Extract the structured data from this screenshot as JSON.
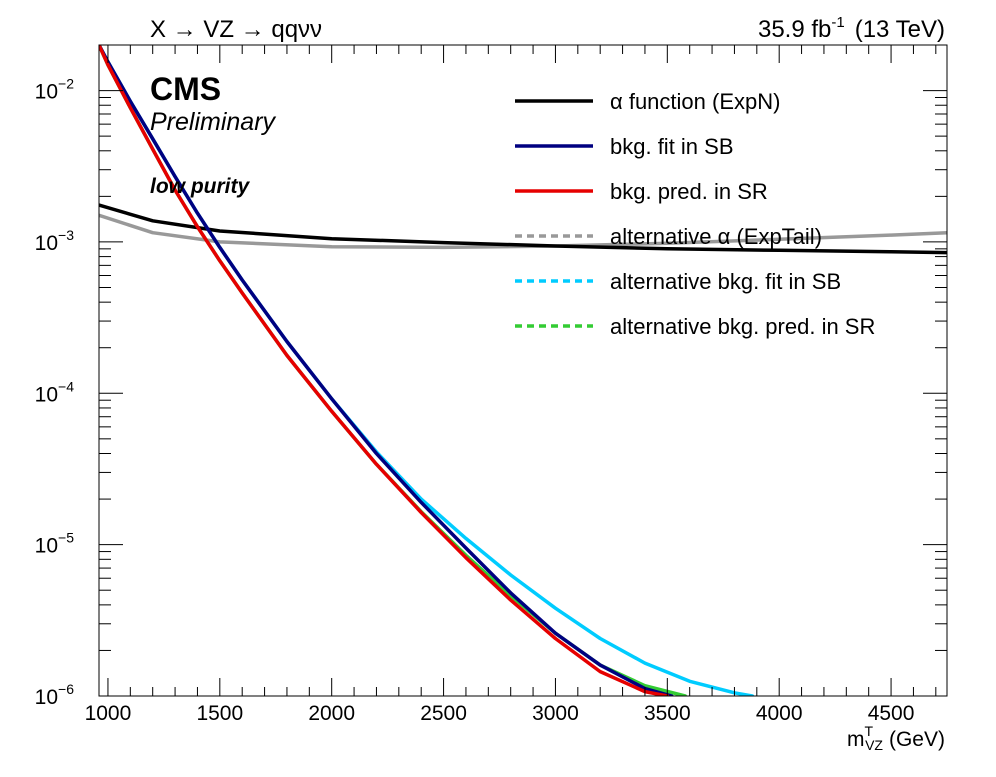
{
  "header": {
    "process_label": "X → VZ → qqνν",
    "lumi_label": "35.9 fb",
    "lumi_sup": "-1",
    "energy_label": "(13 TeV)"
  },
  "labels": {
    "cms": "CMS",
    "preliminary": "Preliminary",
    "category": "low purity"
  },
  "chart_data": {
    "type": "line",
    "title": "",
    "xlabel": "m",
    "xlabel_sup": "T",
    "xlabel_sub": "VZ",
    "xlabel_unit": "(GeV)",
    "ylabel": "",
    "xlim": [
      960,
      4750
    ],
    "ylim": [
      1e-06,
      0.02
    ],
    "yscale": "log",
    "xticks": [
      {
        "value": 1000,
        "label": "1000"
      },
      {
        "value": 1500,
        "label": "1500"
      },
      {
        "value": 2000,
        "label": "2000"
      },
      {
        "value": 2500,
        "label": "2500"
      },
      {
        "value": 3000,
        "label": "3000"
      },
      {
        "value": 3500,
        "label": "3500"
      },
      {
        "value": 4000,
        "label": "4000"
      },
      {
        "value": 4500,
        "label": "4500"
      }
    ],
    "yticks": [
      {
        "value": 1e-06,
        "base": "10",
        "exp": "−6"
      },
      {
        "value": 1e-05,
        "base": "10",
        "exp": "−5"
      },
      {
        "value": 0.0001,
        "base": "10",
        "exp": "−4"
      },
      {
        "value": 0.001,
        "base": "10",
        "exp": "−3"
      },
      {
        "value": 0.01,
        "base": "10",
        "exp": "−2"
      }
    ],
    "legend_position": "top-right",
    "series": [
      {
        "name": "α function (ExpN)",
        "color": "#000000",
        "style": "solid",
        "x": [
          960,
          1200,
          1500,
          2000,
          2500,
          3000,
          3500,
          4000,
          4500,
          4750
        ],
        "y": [
          0.00175,
          0.00138,
          0.00118,
          0.00105,
          0.00099,
          0.00094,
          0.0009,
          0.00088,
          0.00086,
          0.00085
        ]
      },
      {
        "name": "bkg. fit in SB",
        "color": "#000080",
        "style": "solid",
        "x": [
          960,
          1000,
          1100,
          1200,
          1300,
          1400,
          1500,
          1600,
          1800,
          2000,
          2200,
          2400,
          2600,
          2800,
          3000,
          3200,
          3400,
          3520
        ],
        "y": [
          0.02,
          0.0155,
          0.0085,
          0.0048,
          0.0027,
          0.00155,
          0.00092,
          0.00056,
          0.00022,
          9.2e-05,
          4e-05,
          1.9e-05,
          9.5e-06,
          4.8e-06,
          2.6e-06,
          1.6e-06,
          1.12e-06,
          1e-06
        ]
      },
      {
        "name": "bkg. pred. in SR",
        "color": "#e60000",
        "style": "solid",
        "x": [
          960,
          1000,
          1100,
          1200,
          1300,
          1400,
          1500,
          1600,
          1800,
          2000,
          2200,
          2400,
          2600,
          2800,
          3000,
          3200,
          3400,
          3500
        ],
        "y": [
          0.02,
          0.0148,
          0.0077,
          0.0041,
          0.0022,
          0.00126,
          0.00075,
          0.00046,
          0.000178,
          7.6e-05,
          3.4e-05,
          1.63e-05,
          8.2e-06,
          4.3e-06,
          2.4e-06,
          1.45e-06,
          1.07e-06,
          1e-06
        ]
      },
      {
        "name": "alternative α (ExpTail)",
        "color": "#999999",
        "style": "dashed",
        "x": [
          960,
          1200,
          1500,
          2000,
          2500,
          3000,
          3500,
          4000,
          4500,
          4750
        ],
        "y": [
          0.0015,
          0.00115,
          0.001,
          0.00093,
          0.00092,
          0.00094,
          0.00098,
          0.00104,
          0.00111,
          0.00115
        ]
      },
      {
        "name": "alternative bkg. fit in SB",
        "color": "#00ccff",
        "style": "dashed",
        "x": [
          960,
          1000,
          1100,
          1200,
          1300,
          1400,
          1500,
          1600,
          1800,
          2000,
          2200,
          2400,
          2600,
          2800,
          3000,
          3200,
          3400,
          3600,
          3800,
          3880
        ],
        "y": [
          0.02,
          0.0155,
          0.0085,
          0.0048,
          0.0027,
          0.00155,
          0.00092,
          0.00056,
          0.00022,
          9.2e-05,
          4.1e-05,
          2e-05,
          1.1e-05,
          6.3e-06,
          3.8e-06,
          2.4e-06,
          1.65e-06,
          1.25e-06,
          1.05e-06,
          1e-06
        ]
      },
      {
        "name": "alternative bkg. pred. in SR",
        "color": "#33cc33",
        "style": "dashed",
        "x": [
          960,
          1000,
          1100,
          1200,
          1300,
          1400,
          1500,
          1600,
          1800,
          2000,
          2200,
          2400,
          2600,
          2800,
          3000,
          3200,
          3400,
          3580
        ],
        "y": [
          0.02,
          0.0148,
          0.0077,
          0.0041,
          0.0022,
          0.00126,
          0.00075,
          0.00046,
          0.000178,
          7.6e-05,
          3.4e-05,
          1.65e-05,
          8.5e-06,
          4.6e-06,
          2.6e-06,
          1.6e-06,
          1.17e-06,
          1e-06
        ]
      }
    ]
  }
}
